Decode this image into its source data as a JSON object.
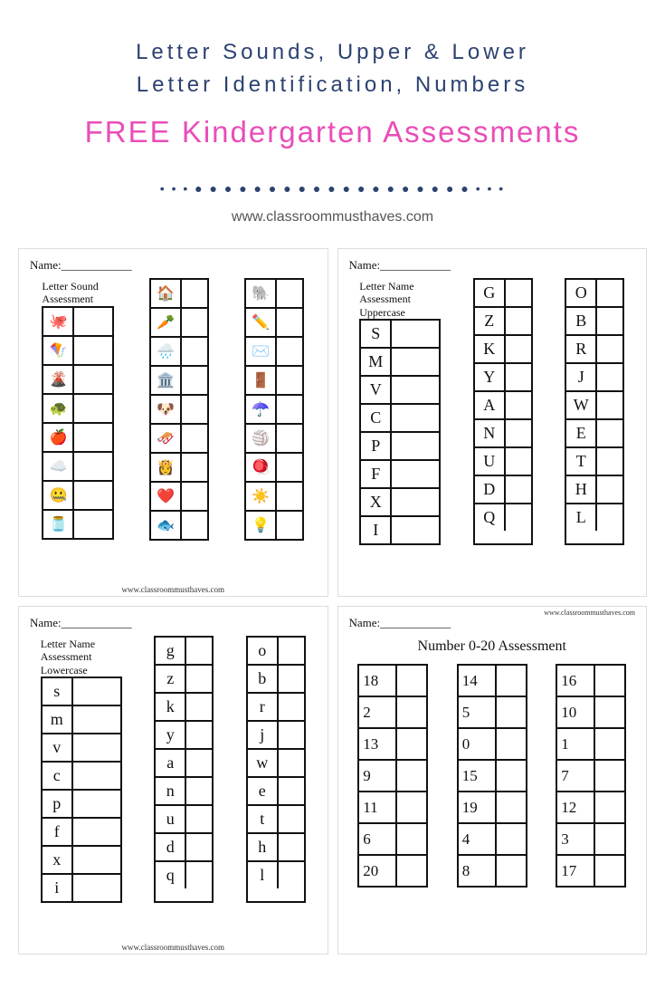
{
  "header": {
    "subtitle_line1": "Letter Sounds,  Upper & Lower",
    "subtitle_line2": "Letter Identification, Numbers",
    "main_title": "FREE Kindergarten Assessments",
    "url": "www.classroommusthaves.com"
  },
  "colors": {
    "navy": "#2c4270",
    "pink": "#e94db8",
    "text": "#111111",
    "background": "#ffffff"
  },
  "dots_pattern": "• • • ● ● ● ● ● ● ● ● ● ● ● ● ● ● ● ● ● ● ● • • •",
  "sheets": {
    "letter_sound": {
      "name_label": "Name:____________",
      "title": "Letter Sound Assessment",
      "footer": "www.classroommusthaves.com",
      "columns": [
        [
          "🐙",
          "🪁",
          "🌋",
          "🐢",
          "🍎",
          "☁️",
          "🤐",
          "🫙"
        ],
        [
          "🏠",
          "🥕",
          "🌧️",
          "🏛️",
          "🐶",
          "🛷",
          "👸",
          "❤️",
          "🐟"
        ],
        [
          "🐘",
          "✏️",
          "✉️",
          "🚪",
          "☂️",
          "🏐",
          "🪀",
          "☀️",
          "💡"
        ]
      ]
    },
    "uppercase": {
      "name_label": "Name:____________",
      "title": "Letter Name Assessment Uppercase",
      "columns": [
        [
          "S",
          "M",
          "V",
          "C",
          "P",
          "F",
          "X",
          "I"
        ],
        [
          "G",
          "Z",
          "K",
          "Y",
          "A",
          "N",
          "U",
          "D",
          "Q"
        ],
        [
          "O",
          "B",
          "R",
          "J",
          "W",
          "E",
          "T",
          "H",
          "L"
        ]
      ]
    },
    "lowercase": {
      "name_label": "Name:____________",
      "title": "Letter Name Assessment Lowercase",
      "footer": "www.classroommusthaves.com",
      "columns": [
        [
          "s",
          "m",
          "v",
          "c",
          "p",
          "f",
          "x",
          "i"
        ],
        [
          "g",
          "z",
          "k",
          "y",
          "a",
          "n",
          "u",
          "d",
          "q"
        ],
        [
          "o",
          "b",
          "r",
          "j",
          "w",
          "e",
          "t",
          "h",
          "l"
        ]
      ]
    },
    "numbers": {
      "name_label": "Name:____________",
      "top_url": "www.classroommusthaves.com",
      "title": "Number 0-20 Assessment",
      "columns": [
        [
          "18",
          "2",
          "13",
          "9",
          "11",
          "6",
          "20"
        ],
        [
          "14",
          "5",
          "0",
          "15",
          "19",
          "4",
          "8"
        ],
        [
          "16",
          "10",
          "1",
          "7",
          "12",
          "3",
          "17"
        ]
      ]
    }
  }
}
